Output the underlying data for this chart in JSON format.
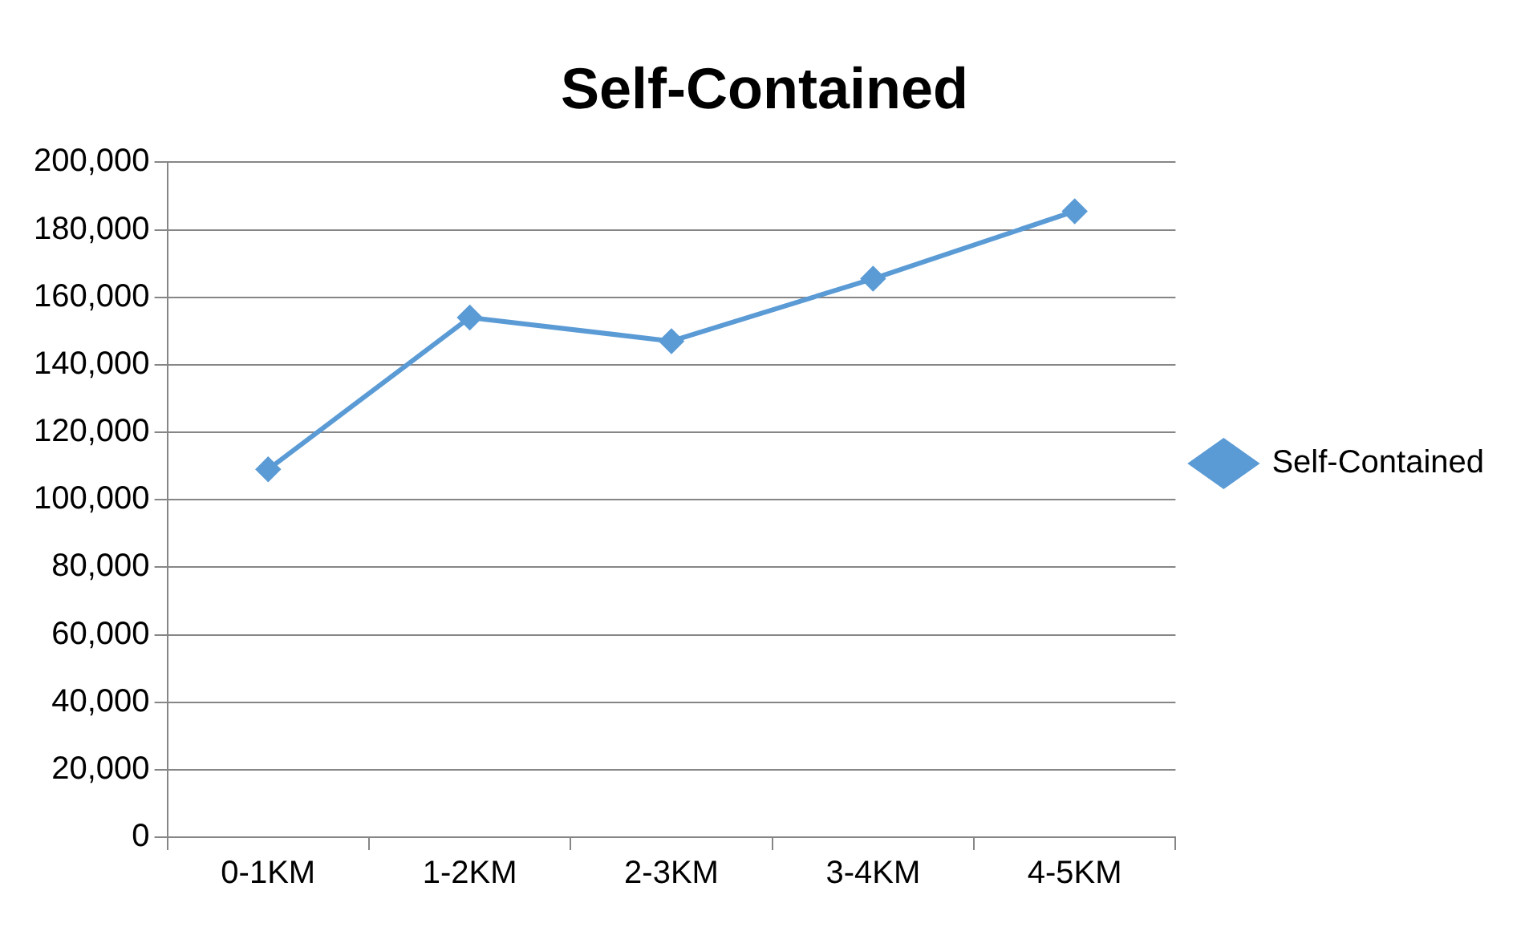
{
  "chart_data": {
    "type": "line",
    "title": "Self-Contained",
    "categories": [
      "0-1KM",
      "1-2KM",
      "2-3KM",
      "3-4KM",
      "4-5KM"
    ],
    "series": [
      {
        "name": "Self-Contained",
        "color": "#5b9bd5",
        "values": [
          109000,
          154000,
          147000,
          165500,
          185500
        ]
      }
    ],
    "ylim": [
      0,
      200000
    ],
    "yticks": [
      {
        "value": 0,
        "label": "0"
      },
      {
        "value": 20000,
        "label": "20,000"
      },
      {
        "value": 40000,
        "label": "40,000"
      },
      {
        "value": 60000,
        "label": "60,000"
      },
      {
        "value": 80000,
        "label": "80,000"
      },
      {
        "value": 100000,
        "label": "100,000"
      },
      {
        "value": 120000,
        "label": "120,000"
      },
      {
        "value": 140000,
        "label": "140,000"
      },
      {
        "value": 160000,
        "label": "160,000"
      },
      {
        "value": 180000,
        "label": "180,000"
      },
      {
        "value": 200000,
        "label": "200,000"
      }
    ],
    "grid": "y",
    "legend": "right",
    "marker": "diamond",
    "line_style": "solid"
  }
}
